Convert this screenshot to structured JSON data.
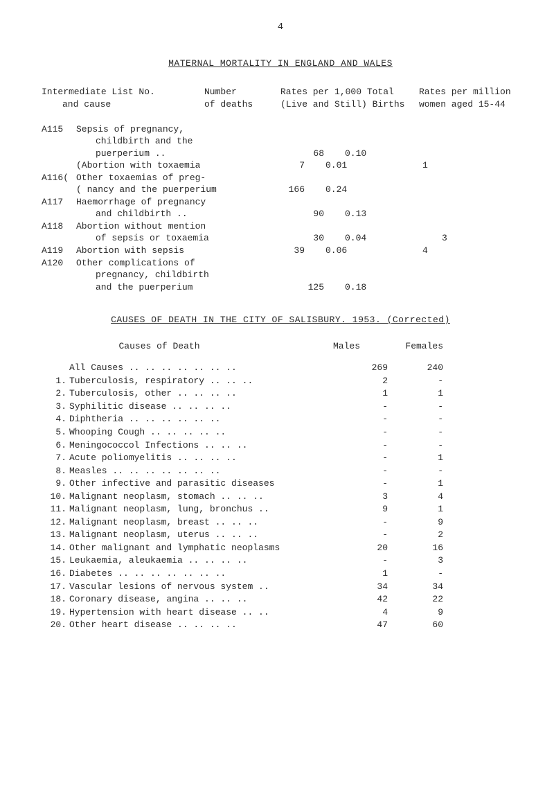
{
  "page_number": "4",
  "title": "MATERNAL MORTALITY IN ENGLAND AND WALES",
  "header": {
    "left_line1": "Intermediate List No.",
    "left_line2": "and cause",
    "col2_line1": "Number",
    "col2_line2": "of deaths",
    "col3_line1": "Rates per 1,000 Total",
    "col3_line2": "(Live and Still) Births",
    "col4_line1": "Rates per million",
    "col4_line2": "women aged 15-44"
  },
  "mortality_rows": [
    {
      "code": "A115",
      "desc": "Sepsis of pregnancy,",
      "num": "",
      "rate": "",
      "permil": ""
    },
    {
      "code": "",
      "desc": "childbirth and the",
      "num": "",
      "rate": "",
      "permil": "",
      "cont": true
    },
    {
      "code": "",
      "desc": "puerperium   ..",
      "num": "68",
      "rate": "0.10",
      "permil": "",
      "cont": true
    },
    {
      "code": "",
      "desc": "(Abortion with toxaemia",
      "num": "7",
      "rate": "0.01",
      "permil": "1"
    },
    {
      "code": "A116(",
      "desc": "Other toxaemias of preg-",
      "num": "",
      "rate": "",
      "permil": ""
    },
    {
      "code": "",
      "desc": "( nancy and the puerperium",
      "num": "166",
      "rate": "0.24",
      "permil": ""
    },
    {
      "code": "A117",
      "desc": "Haemorrhage of pregnancy",
      "num": "",
      "rate": "",
      "permil": ""
    },
    {
      "code": "",
      "desc": "and childbirth   ..",
      "num": "90",
      "rate": "0.13",
      "permil": "",
      "cont": true
    },
    {
      "code": "A118",
      "desc": "Abortion without mention",
      "num": "",
      "rate": "",
      "permil": ""
    },
    {
      "code": "",
      "desc": "of sepsis or toxaemia",
      "num": "30",
      "rate": "0.04",
      "permil": "3",
      "cont": true
    },
    {
      "code": "A119",
      "desc": "Abortion with sepsis",
      "num": "39",
      "rate": "0.06",
      "permil": "4"
    },
    {
      "code": "A120",
      "desc": "Other complications of",
      "num": "",
      "rate": "",
      "permil": ""
    },
    {
      "code": "",
      "desc": "pregnancy, childbirth",
      "num": "",
      "rate": "",
      "permil": "",
      "cont": true
    },
    {
      "code": "",
      "desc": "and the puerperium",
      "num": "125",
      "rate": "0.18",
      "permil": "",
      "cont": true
    }
  ],
  "section2_title": "CAUSES OF DEATH IN THE CITY OF SALISBURY. 1953. (Corrected)",
  "death_header": {
    "col1": "Causes of Death",
    "col2": "Males",
    "col3": "Females"
  },
  "death_rows": [
    {
      "code": "",
      "name": "All Causes  ..   ..   ..   ..   ..   ..   ..",
      "m": "269",
      "f": "240"
    },
    {
      "code": "1.",
      "name": "Tuberculosis, respiratory   ..   ..   ..",
      "m": "2",
      "f": "-"
    },
    {
      "code": "2.",
      "name": "Tuberculosis, other   ..   ..   ..   ..",
      "m": "1",
      "f": "1"
    },
    {
      "code": "3.",
      "name": "Syphilitic disease   ..   ..   ..   ..",
      "m": "-",
      "f": "-"
    },
    {
      "code": "4.",
      "name": "Diphtheria   ..   ..   ..   ..   ..   ..",
      "m": "-",
      "f": "-"
    },
    {
      "code": "5.",
      "name": "Whooping Cough   ..   ..   ..   ..   ..",
      "m": "-",
      "f": "-"
    },
    {
      "code": "6.",
      "name": "Meningococcol Infections   ..   ..   ..",
      "m": "-",
      "f": "-"
    },
    {
      "code": "7.",
      "name": "Acute poliomyelitis   ..   ..   ..   ..",
      "m": "-",
      "f": "1"
    },
    {
      "code": "8.",
      "name": "Measles ..   ..   ..   ..   ..   ..   ..",
      "m": "-",
      "f": "-"
    },
    {
      "code": "9.",
      "name": "Other infective and parasitic diseases",
      "m": "-",
      "f": "1"
    },
    {
      "code": "10.",
      "name": "Malignant neoplasm, stomach ..   ..   ..",
      "m": "3",
      "f": "4"
    },
    {
      "code": "11.",
      "name": "Malignant neoplasm, lung, bronchus   ..",
      "m": "9",
      "f": "1"
    },
    {
      "code": "12.",
      "name": "Malignant neoplasm, breast   ..   ..   ..",
      "m": "-",
      "f": "9"
    },
    {
      "code": "13.",
      "name": "Malignant neoplasm, uterus   ..   ..   ..",
      "m": "-",
      "f": "2"
    },
    {
      "code": "14.",
      "name": "Other malignant and lymphatic neoplasms",
      "m": "20",
      "f": "16"
    },
    {
      "code": "15.",
      "name": "Leukaemia, aleukaemia   ..   ..   ..   ..",
      "m": "-",
      "f": "3"
    },
    {
      "code": "16.",
      "name": "Diabetes   ..   ..   ..   ..   ..   ..   ..",
      "m": "1",
      "f": "-"
    },
    {
      "code": "17.",
      "name": "Vascular lesions of nervous system   ..",
      "m": "34",
      "f": "34"
    },
    {
      "code": "18.",
      "name": "Coronary disease, angina   ..   ..   ..",
      "m": "42",
      "f": "22"
    },
    {
      "code": "19.",
      "name": "Hypertension with heart disease   ..   ..",
      "m": "4",
      "f": "9"
    },
    {
      "code": "20.",
      "name": "Other heart disease   ..   ..   ..   ..",
      "m": "47",
      "f": "60"
    }
  ]
}
